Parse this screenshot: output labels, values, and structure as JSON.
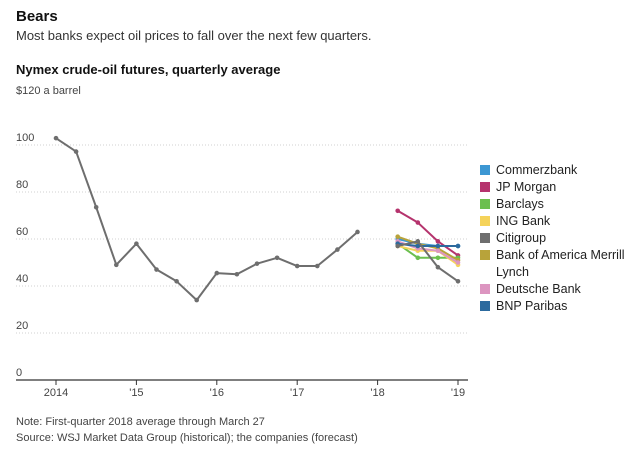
{
  "header": {
    "title": "Bears",
    "subtitle": "Most banks expect oil prices to fall over the next few quarters."
  },
  "footer": {
    "note": "Note: First-quarter 2018 average through March 27",
    "source": "Source: WSJ Market Data Group (historical); the companies (forecast)"
  },
  "chart_data": {
    "type": "line",
    "title": "Nymex crude-oil futures, quarterly average",
    "ylabel": "$120 a barrel",
    "ylim": [
      0,
      120
    ],
    "yticks": [
      0,
      20,
      40,
      60,
      80,
      100
    ],
    "ytick_labels": [
      "0",
      "20",
      "40",
      "60",
      "80",
      "100"
    ],
    "xlim": [
      2014,
      2019
    ],
    "xticks": [
      2014,
      2015,
      2016,
      2017,
      2018,
      2019
    ],
    "xtick_labels": [
      "2014",
      "'15",
      "'16",
      "'17",
      "'18",
      "'19"
    ],
    "grid": true,
    "legend_position": "right",
    "series": [
      {
        "name": "Commerzbank",
        "color": "#3c97d3",
        "x": [
          2018.25,
          2018.5,
          2018.75,
          2019
        ],
        "values": [
          60,
          58,
          57,
          57
        ]
      },
      {
        "name": "JP Morgan",
        "color": "#b5336d",
        "x": [
          2018.25,
          2018.5,
          2018.75,
          2019
        ],
        "values": [
          72,
          67,
          59,
          53
        ]
      },
      {
        "name": "Barclays",
        "color": "#6cbf4e",
        "x": [
          2018.25,
          2018.5,
          2018.75,
          2019
        ],
        "values": [
          58,
          52,
          52,
          52
        ]
      },
      {
        "name": "ING Bank",
        "color": "#f5d35a",
        "x": [
          2018.25,
          2018.5,
          2018.75,
          2019
        ],
        "values": [
          57,
          55,
          55,
          49
        ]
      },
      {
        "name": "Citigroup",
        "color": "#6e6e6e",
        "x": [
          2014,
          2014.25,
          2014.5,
          2014.75,
          2015,
          2015.25,
          2015.5,
          2015.75,
          2016,
          2016.25,
          2016.5,
          2016.75,
          2017,
          2017.25,
          2017.5,
          2017.75,
          2018,
          2018.25,
          2018.5,
          2018.75,
          2019
        ],
        "values": [
          102.9,
          97.2,
          73.5,
          49,
          58,
          47,
          42,
          34,
          45.5,
          45,
          49.5,
          52,
          48.5,
          48.5,
          55.5,
          63,
          null,
          57,
          59,
          48,
          42
        ]
      },
      {
        "name": "Bank of America Merrill Lynch",
        "color": "#b8a33a",
        "x": [
          2018.25,
          2018.5,
          2018.75,
          2019
        ],
        "values": [
          61,
          58,
          56,
          51
        ]
      },
      {
        "name": "Deutsche Bank",
        "color": "#dc95c0",
        "x": [
          2018.25,
          2018.5,
          2018.75,
          2019
        ],
        "values": [
          59,
          56,
          55,
          50
        ]
      },
      {
        "name": "BNP Paribas",
        "color": "#2c6a9e",
        "x": [
          2018.25,
          2018.5,
          2018.75,
          2019
        ],
        "values": [
          58,
          57,
          57,
          57
        ]
      }
    ],
    "legend_order": [
      "Commerzbank",
      "JP Morgan",
      "Barclays",
      "ING Bank",
      "Citigroup",
      "Bank of America Merrill Lynch",
      "Deutsche Bank",
      "BNP Paribas"
    ]
  }
}
